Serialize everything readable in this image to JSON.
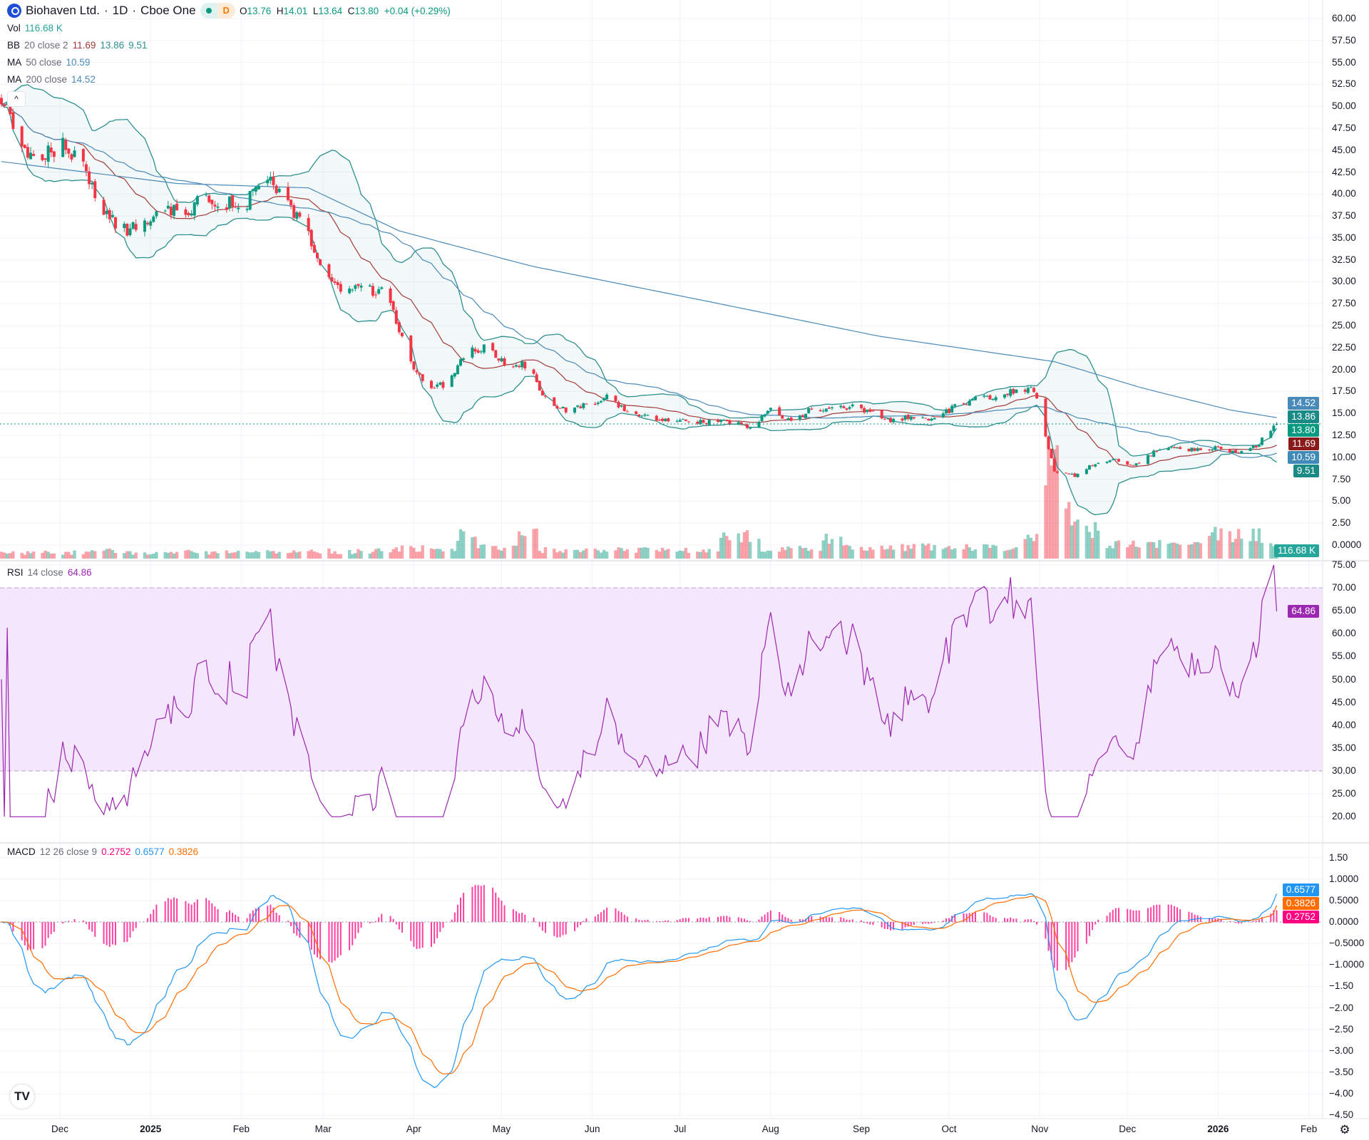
{
  "header": {
    "symbol": "Biohaven Ltd.",
    "sep1": "·",
    "interval": "1D",
    "sep2": "·",
    "exchange": "Cboe One",
    "status_letter": "D",
    "o_label": "O",
    "o": "13.76",
    "h_label": "H",
    "h": "14.01",
    "l_label": "L",
    "l": "13.64",
    "c_label": "C",
    "c": "13.80",
    "change": "+0.04 (+0.29%)",
    "collapse_icon": "^"
  },
  "legends": {
    "vol": {
      "label": "Vol",
      "value": "116.68 K"
    },
    "bb": {
      "label": "BB",
      "params": "20 close 2",
      "basis": "11.69",
      "upper": "13.86",
      "lower": "9.51"
    },
    "ma50": {
      "label": "MA",
      "params": "50 close",
      "value": "10.59"
    },
    "ma200": {
      "label": "MA",
      "params": "200 close",
      "value": "14.52"
    },
    "rsi": {
      "label": "RSI",
      "params": "14 close",
      "value": "64.86"
    },
    "macd": {
      "label": "MACD",
      "params": "12 26 close 9",
      "hist": "0.2752",
      "macd": "0.6577",
      "signal": "0.3826"
    }
  },
  "colors": {
    "up": "#089981",
    "down": "#F23645",
    "bb_band": "#2d8f8f",
    "bb_basis": "#a33a3a",
    "ma": "#4a8ab8",
    "rsi": "#9c27b0",
    "rsi_bg": "#f3e6fd",
    "macd": "#2196F3",
    "signal": "#FF6D00",
    "hist": "#FF0080",
    "vol_label": "#26a69a",
    "brand": "#1e4fd6",
    "status_d": "#f57c00"
  },
  "axis_labels": {
    "last_price": "13.80",
    "bb_upper": "13.86",
    "bb_basis": "11.69",
    "bb_lower": "9.51",
    "ma50": "10.59",
    "ma200": "14.52",
    "volume": "116.68 K",
    "rsi": "64.86",
    "macd": "0.6577",
    "signal": "0.3826",
    "hist": "0.2752"
  },
  "footer": {
    "logo": "TV",
    "settings_icon": "gear-icon"
  },
  "chart_data": [
    {
      "type": "candlestick",
      "first_date": "2024-11-11",
      "last_date": "2026-01-21",
      "sampling": "closes sampled evenly in time between first_date and last_date",
      "closes": [
        51,
        45,
        44,
        46,
        43,
        38,
        36,
        36,
        39,
        37,
        40,
        39,
        38.5,
        42,
        39,
        36,
        30.5,
        29,
        29,
        29,
        22,
        17.5,
        18.5,
        22,
        22.5,
        20.5,
        20.5,
        16,
        15.4,
        16,
        17,
        15,
        14.5,
        14.4,
        14.1,
        14,
        14,
        13.5,
        15.3,
        14,
        15.5,
        15.4,
        15.7,
        15,
        14.2,
        14.6,
        14.4,
        15.6,
        16.6,
        17,
        17.5,
        17.9,
        8.5,
        7.9,
        9.3,
        9.8,
        9.0,
        10.7,
        11.1,
        10.8,
        11.1,
        10.5,
        11.3,
        13.8
      ],
      "last_bar": {
        "open": 13.76,
        "high": 14.01,
        "low": 13.64,
        "close": 13.8,
        "volume_k": 116.68
      },
      "volume_k_weekly": [
        60,
        60,
        65,
        60,
        70,
        90,
        60,
        55,
        65,
        70,
        60,
        70,
        70,
        80,
        70,
        75,
        80,
        70,
        75,
        80,
        110,
        110,
        110,
        250,
        120,
        120,
        300,
        90,
        90,
        90,
        90,
        90,
        90,
        90,
        90,
        90,
        250,
        250,
        100,
        100,
        100,
        220,
        120,
        120,
        120,
        120,
        120,
        120,
        120,
        120,
        120,
        200,
        1100,
        450,
        300,
        150,
        150,
        150,
        150,
        160,
        250,
        250,
        250,
        120
      ],
      "ma200_keyframes": [
        [
          "2024-11-11",
          43.7
        ],
        [
          "2025-01-10",
          41.2
        ],
        [
          "2025-02-24",
          40.7
        ],
        [
          "2025-03-27",
          35.8
        ],
        [
          "2025-05-11",
          31.8
        ],
        [
          "2025-07-10",
          27.8
        ],
        [
          "2025-09-07",
          23.8
        ],
        [
          "2025-11-06",
          20.9
        ],
        [
          "2025-12-06",
          17.9
        ],
        [
          "2026-01-05",
          15.4
        ],
        [
          "2026-01-21",
          14.52
        ]
      ],
      "ylim": [
        0,
        60
      ],
      "yticks": [
        "60.00",
        "57.50",
        "55.00",
        "52.50",
        "50.00",
        "47.50",
        "45.00",
        "42.50",
        "40.00",
        "37.50",
        "35.00",
        "32.50",
        "30.00",
        "27.50",
        "25.00",
        "22.50",
        "20.00",
        "17.50",
        "15.00",
        "12.50",
        "10.00",
        "7.50",
        "5.00",
        "2.50",
        "0.0000"
      ],
      "xticks": [
        {
          "label": "Dec",
          "date": "2024-12-01"
        },
        {
          "label": "2025",
          "date": "2025-01-01",
          "bold": true
        },
        {
          "label": "Feb",
          "date": "2025-02-01"
        },
        {
          "label": "Mar",
          "date": "2025-03-01"
        },
        {
          "label": "Apr",
          "date": "2025-04-01"
        },
        {
          "label": "May",
          "date": "2025-05-01"
        },
        {
          "label": "Jun",
          "date": "2025-06-01"
        },
        {
          "label": "Jul",
          "date": "2025-07-01"
        },
        {
          "label": "Aug",
          "date": "2025-08-01"
        },
        {
          "label": "Sep",
          "date": "2025-09-01"
        },
        {
          "label": "Oct",
          "date": "2025-10-01"
        },
        {
          "label": "Nov",
          "date": "2025-11-01"
        },
        {
          "label": "Dec",
          "date": "2025-12-01"
        },
        {
          "label": "2026",
          "date": "2026-01-01",
          "bold": true
        },
        {
          "label": "Feb",
          "date": "2026-02-01"
        }
      ]
    },
    {
      "type": "line",
      "name": "RSI 14 close",
      "ylim": [
        20,
        75
      ],
      "bands": [
        30,
        70
      ],
      "yticks": [
        "75.00",
        "70.00",
        "65.00",
        "60.00",
        "55.00",
        "50.00",
        "45.00",
        "40.00",
        "35.00",
        "30.00",
        "25.00",
        "20.00"
      ],
      "last": 64.86
    },
    {
      "type": "line",
      "name": "MACD 12 26 close 9",
      "ylim": [
        -4.5,
        1.5
      ],
      "yticks": [
        "1.50",
        "1.0000",
        "0.5000",
        "0.0000",
        "−0.5000",
        "−1.0000",
        "−1.50",
        "−2.00",
        "−2.50",
        "−3.00",
        "−3.50",
        "−4.00",
        "−4.50"
      ],
      "last": {
        "hist": 0.2752,
        "macd": 0.6577,
        "signal": 0.3826
      }
    }
  ]
}
